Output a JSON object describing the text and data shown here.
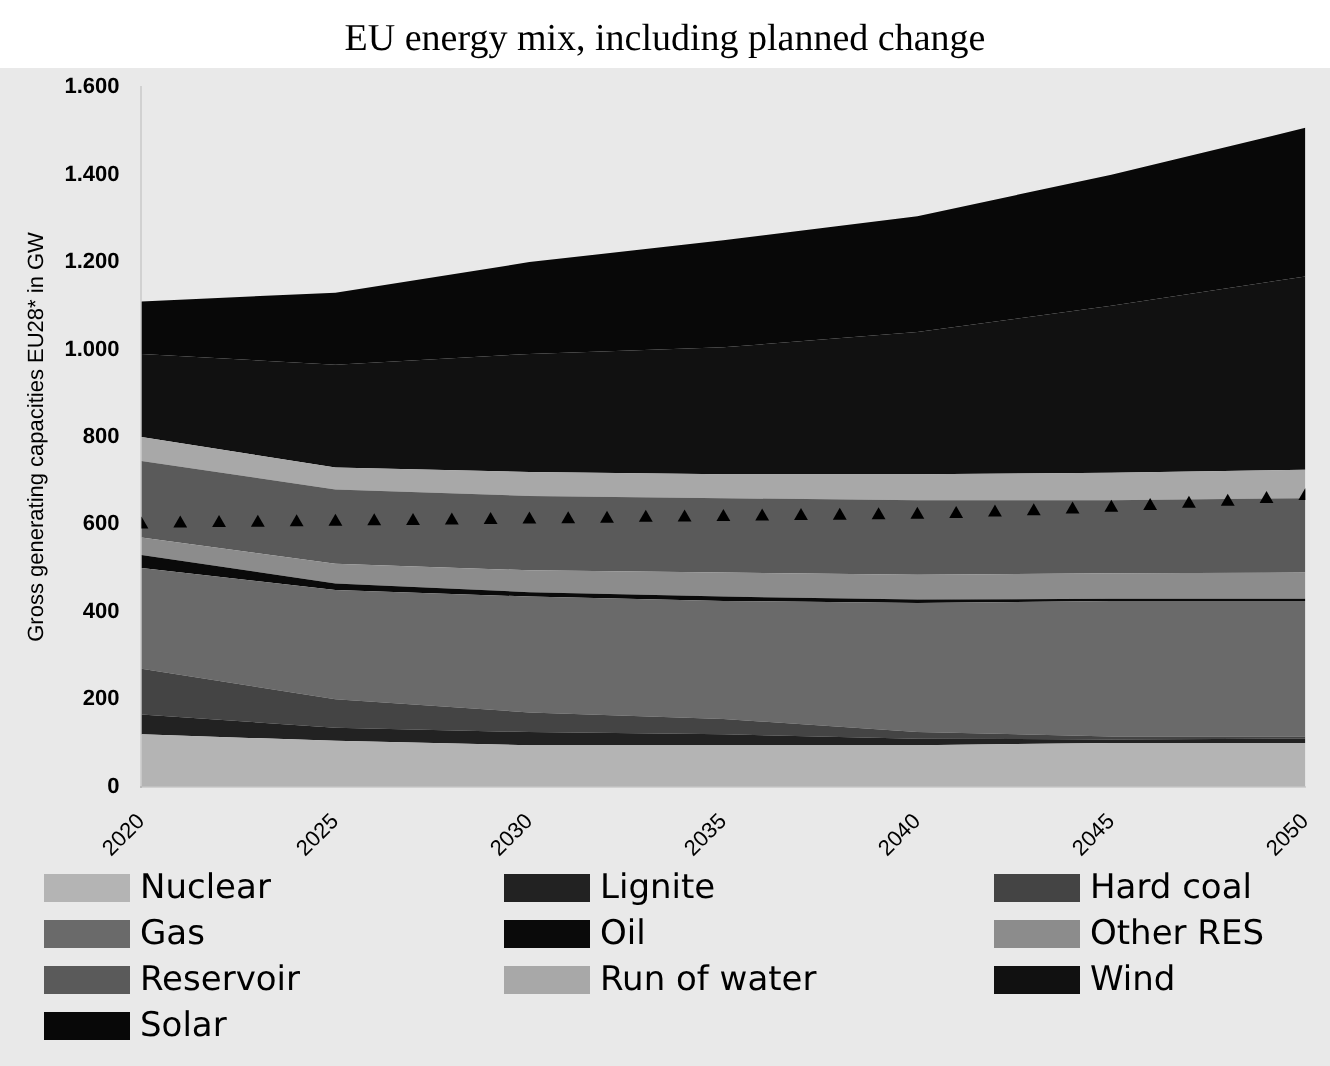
{
  "chart_data": {
    "type": "area",
    "title": "EU energy mix, including planned change",
    "ylabel": "Gross generating capacities EU28* in GW",
    "stacked": true,
    "x": [
      2020,
      2025,
      2030,
      2035,
      2040,
      2045,
      2050
    ],
    "xlim": [
      2020,
      2050
    ],
    "xticks": [
      2020,
      2025,
      2030,
      2035,
      2040,
      2045,
      2050
    ],
    "ylim": [
      0,
      1600
    ],
    "yticks": [
      0,
      200,
      400,
      600,
      800,
      {
        "value": 1000,
        "label": "1.000"
      },
      {
        "value": 1200,
        "label": "1.200"
      },
      {
        "value": 1400,
        "label": "1.400"
      },
      {
        "value": 1600,
        "label": "1.600"
      }
    ],
    "grid": false,
    "legend": "bottom",
    "series": [
      {
        "name": "Nuclear",
        "color": "#b4b4b4",
        "values": [
          120,
          105,
          95,
          95,
          95,
          100,
          100
        ]
      },
      {
        "name": "Lignite",
        "color": "#222222",
        "values": [
          45,
          30,
          30,
          25,
          15,
          8,
          10
        ]
      },
      {
        "name": "Hard coal",
        "color": "#444444",
        "values": [
          105,
          65,
          45,
          35,
          15,
          7,
          5
        ]
      },
      {
        "name": "Gas",
        "color": "#6a6a6a",
        "values": [
          230,
          250,
          265,
          270,
          295,
          310,
          310
        ]
      },
      {
        "name": "Oil",
        "color": "#0a0a0a",
        "values": [
          30,
          15,
          10,
          10,
          8,
          5,
          5
        ]
      },
      {
        "name": "Other RES",
        "color": "#8c8c8c",
        "values": [
          40,
          45,
          50,
          55,
          57,
          58,
          60
        ]
      },
      {
        "name": "Reservoir",
        "color": "#5a5a5a",
        "values": [
          175,
          170,
          170,
          170,
          170,
          167,
          170
        ]
      },
      {
        "name": "Run of water",
        "color": "#a8a8a8",
        "values": [
          55,
          50,
          55,
          55,
          60,
          63,
          65
        ]
      },
      {
        "name": "Wind",
        "color": "#111111",
        "values": [
          190,
          235,
          270,
          290,
          325,
          382,
          442
        ]
      },
      {
        "name": "Solar",
        "color": "#080808",
        "values": [
          120,
          165,
          210,
          245,
          265,
          300,
          340
        ]
      },
      {
        "type": "scatter",
        "marker": "triangle",
        "color": "#000000",
        "x": [
          2020,
          2021,
          2022,
          2023,
          2024,
          2025,
          2026,
          2027,
          2028,
          2029,
          2030,
          2031,
          2032,
          2033,
          2034,
          2035,
          2036,
          2037,
          2038,
          2039,
          2040,
          2041,
          2042,
          2043,
          2044,
          2045,
          2046,
          2047,
          2048,
          2049,
          2050
        ],
        "values": [
          600,
          602,
          603,
          604,
          605,
          606,
          607,
          608,
          609,
          610,
          611,
          612,
          613,
          615,
          616,
          617,
          618,
          619,
          620,
          621,
          622,
          624,
          627,
          630,
          634,
          638,
          642,
          647,
          652,
          658,
          665
        ]
      }
    ]
  }
}
